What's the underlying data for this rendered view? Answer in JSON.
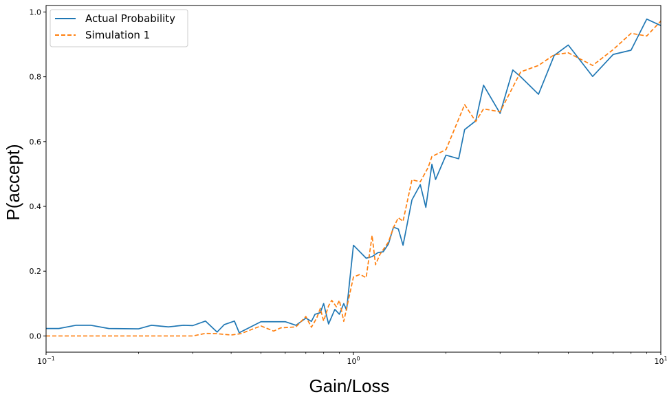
{
  "chart_data": {
    "type": "line",
    "xscale": "log",
    "xlim": [
      0.1,
      10
    ],
    "ylim": [
      -0.05,
      1.02
    ],
    "xlabel": "Gain/Loss",
    "ylabel": "P(accept)",
    "x_ticks": [
      {
        "value": 0.1,
        "base": "10",
        "exp": "−1"
      },
      {
        "value": 1,
        "base": "10",
        "exp": "0"
      },
      {
        "value": 10,
        "base": "10",
        "exp": "1"
      }
    ],
    "y_ticks": [
      "0.0",
      "0.2",
      "0.4",
      "0.6",
      "0.8",
      "1.0"
    ],
    "y_tick_values": [
      0.0,
      0.2,
      0.4,
      0.6,
      0.8,
      1.0
    ],
    "grid": false,
    "legend_position": "upper-left",
    "series": [
      {
        "name": "Actual Probability",
        "color": "#1f77b4",
        "style": "solid",
        "points": [
          [
            0.1,
            0.023
          ],
          [
            0.11,
            0.023
          ],
          [
            0.125,
            0.033
          ],
          [
            0.14,
            0.033
          ],
          [
            0.16,
            0.023
          ],
          [
            0.2,
            0.022
          ],
          [
            0.22,
            0.033
          ],
          [
            0.25,
            0.028
          ],
          [
            0.28,
            0.033
          ],
          [
            0.3,
            0.032
          ],
          [
            0.33,
            0.046
          ],
          [
            0.36,
            0.012
          ],
          [
            0.38,
            0.035
          ],
          [
            0.41,
            0.046
          ],
          [
            0.425,
            0.01
          ],
          [
            0.5,
            0.044
          ],
          [
            0.6,
            0.044
          ],
          [
            0.65,
            0.033
          ],
          [
            0.7,
            0.055
          ],
          [
            0.73,
            0.045
          ],
          [
            0.75,
            0.067
          ],
          [
            0.78,
            0.072
          ],
          [
            0.8,
            0.1
          ],
          [
            0.83,
            0.037
          ],
          [
            0.87,
            0.082
          ],
          [
            0.9,
            0.067
          ],
          [
            0.93,
            0.1
          ],
          [
            0.95,
            0.08
          ],
          [
            1.0,
            0.28
          ],
          [
            1.1,
            0.24
          ],
          [
            1.15,
            0.245
          ],
          [
            1.2,
            0.257
          ],
          [
            1.25,
            0.26
          ],
          [
            1.3,
            0.284
          ],
          [
            1.35,
            0.336
          ],
          [
            1.4,
            0.33
          ],
          [
            1.45,
            0.28
          ],
          [
            1.55,
            0.42
          ],
          [
            1.65,
            0.467
          ],
          [
            1.72,
            0.397
          ],
          [
            1.8,
            0.53
          ],
          [
            1.85,
            0.483
          ],
          [
            2.0,
            0.558
          ],
          [
            2.2,
            0.547
          ],
          [
            2.3,
            0.637
          ],
          [
            2.5,
            0.664
          ],
          [
            2.65,
            0.774
          ],
          [
            3.0,
            0.687
          ],
          [
            3.3,
            0.821
          ],
          [
            3.5,
            0.8
          ],
          [
            4.0,
            0.746
          ],
          [
            4.5,
            0.866
          ],
          [
            5.0,
            0.898
          ],
          [
            6.0,
            0.801
          ],
          [
            7.0,
            0.869
          ],
          [
            8.0,
            0.882
          ],
          [
            9.0,
            0.978
          ],
          [
            10.0,
            0.958
          ]
        ]
      },
      {
        "name": "Simulation 1",
        "color": "#ff7f0e",
        "style": "dashed",
        "points": [
          [
            0.1,
            0.0
          ],
          [
            0.2,
            0.0
          ],
          [
            0.25,
            0.0
          ],
          [
            0.3,
            0.0
          ],
          [
            0.33,
            0.008
          ],
          [
            0.36,
            0.007
          ],
          [
            0.4,
            0.003
          ],
          [
            0.43,
            0.007
          ],
          [
            0.5,
            0.031
          ],
          [
            0.55,
            0.015
          ],
          [
            0.58,
            0.025
          ],
          [
            0.65,
            0.028
          ],
          [
            0.7,
            0.06
          ],
          [
            0.73,
            0.027
          ],
          [
            0.76,
            0.056
          ],
          [
            0.78,
            0.085
          ],
          [
            0.8,
            0.046
          ],
          [
            0.83,
            0.093
          ],
          [
            0.85,
            0.11
          ],
          [
            0.88,
            0.09
          ],
          [
            0.9,
            0.11
          ],
          [
            0.93,
            0.045
          ],
          [
            1.0,
            0.182
          ],
          [
            1.05,
            0.19
          ],
          [
            1.1,
            0.18
          ],
          [
            1.15,
            0.31
          ],
          [
            1.18,
            0.22
          ],
          [
            1.22,
            0.252
          ],
          [
            1.3,
            0.29
          ],
          [
            1.35,
            0.335
          ],
          [
            1.4,
            0.365
          ],
          [
            1.45,
            0.354
          ],
          [
            1.55,
            0.482
          ],
          [
            1.65,
            0.476
          ],
          [
            1.75,
            0.52
          ],
          [
            1.8,
            0.554
          ],
          [
            2.0,
            0.575
          ],
          [
            2.3,
            0.714
          ],
          [
            2.5,
            0.662
          ],
          [
            2.65,
            0.701
          ],
          [
            3.0,
            0.692
          ],
          [
            3.5,
            0.815
          ],
          [
            4.0,
            0.835
          ],
          [
            4.5,
            0.868
          ],
          [
            5.0,
            0.874
          ],
          [
            6.0,
            0.835
          ],
          [
            7.0,
            0.884
          ],
          [
            8.0,
            0.934
          ],
          [
            9.0,
            0.926
          ],
          [
            10.0,
            0.972
          ]
        ]
      }
    ]
  }
}
